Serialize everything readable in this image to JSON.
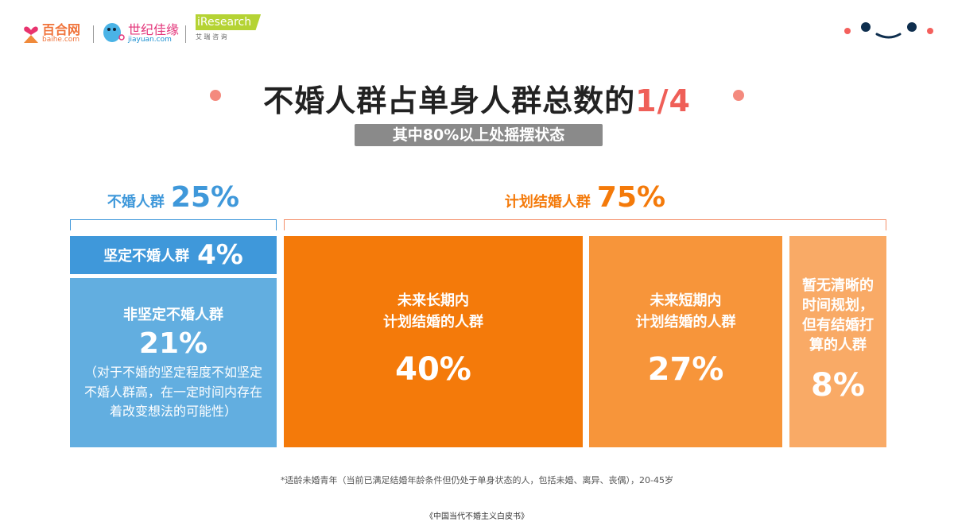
{
  "logos": {
    "baihe": {
      "cn": "百合网",
      "en": "baihe.com"
    },
    "jiayuan": {
      "cn": "世纪佳缘",
      "en": "jiayuan.com"
    },
    "iresearch": {
      "en": "iResearch",
      "cn": "艾 瑞 咨 询"
    }
  },
  "title": {
    "main": "不婚人群占单身人群总数的",
    "highlight": "1/4",
    "subtitle": "其中80%以上处摇摆状态"
  },
  "colors": {
    "blue_dark": "#3f98da",
    "blue_light": "#62aee0",
    "orange_1": "#f47a0a",
    "orange_2": "#f7953a",
    "orange_3": "#f9aa66",
    "accent_red": "#ef5f58"
  },
  "left_group": {
    "label": "不婚人群",
    "pct": "25%",
    "firm": {
      "label": "坚定不婚人群",
      "pct": "4%"
    },
    "unfirm": {
      "label": "非坚定不婚人群",
      "pct": "21%",
      "note": "（对于不婚的坚定程度不如坚定不婚人群高，在一定时间内存在着改变想法的可能性）"
    }
  },
  "right_group": {
    "label": "计划结婚人群",
    "pct": "75%",
    "items": [
      {
        "line1": "未来长期内",
        "line2": "计划结婚的人群",
        "pct": "40%"
      },
      {
        "line1": "未来短期内",
        "line2": "计划结婚的人群",
        "pct": "27%"
      },
      {
        "line1": "暂无清晰的时间规划，但有结婚打算的人群",
        "line2": "",
        "pct": "8%"
      }
    ]
  },
  "footnote": "*适龄未婚青年（当前已满足结婚年龄条件但仍处于单身状态的人，包括未婚、离异、丧偶），20-45岁",
  "source": "《中国当代不婚主义白皮书》"
}
